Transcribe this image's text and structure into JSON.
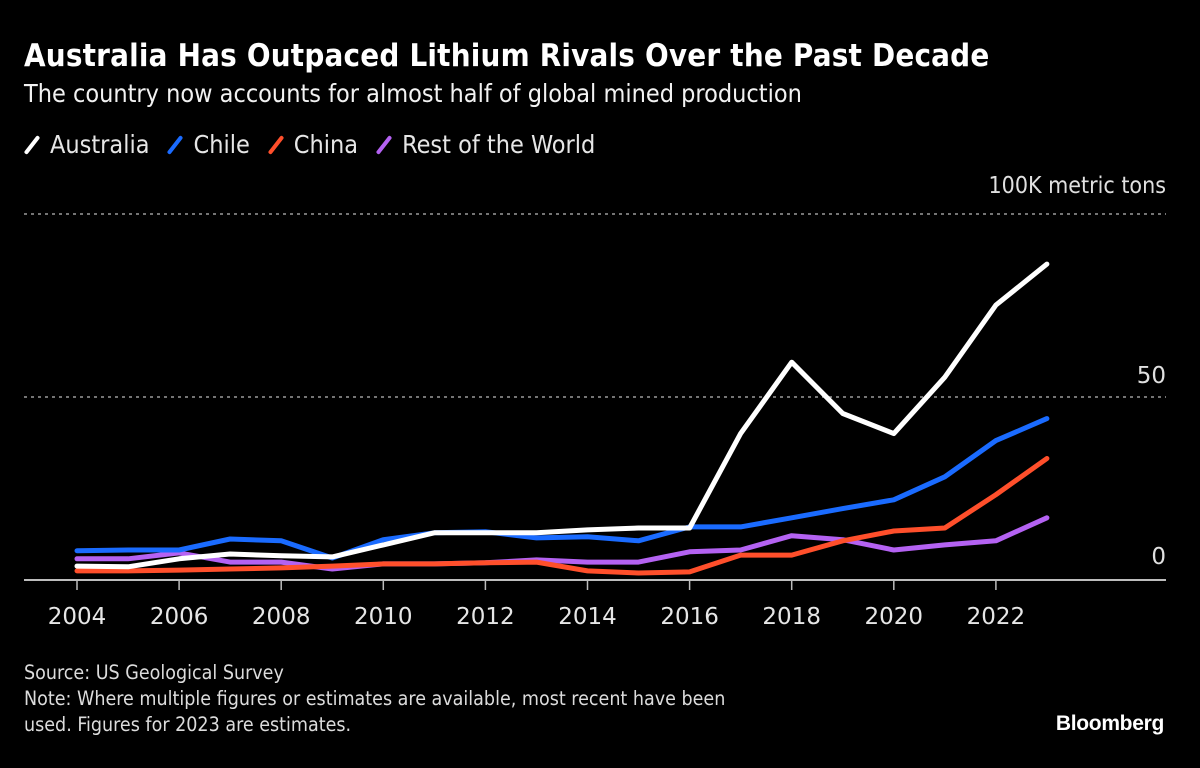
{
  "header": {
    "title": "Australia Has Outpaced Lithium Rivals Over the Past Decade",
    "subtitle": "The country now accounts for almost half of global mined production"
  },
  "legend": [
    {
      "label": "Australia",
      "color": "#ffffff"
    },
    {
      "label": "Chile",
      "color": "#1a6bff"
    },
    {
      "label": "China",
      "color": "#ff4f2b"
    },
    {
      "label": "Rest of the World",
      "color": "#b462f2"
    }
  ],
  "footer": {
    "source": "Source: US Geological Survey",
    "note_line1": "Note: Where multiple figures or estimates are available, most recent have been",
    "note_line2": "used. Figures for 2023 are estimates.",
    "brand": "Bloomberg"
  },
  "chart_data": {
    "type": "line",
    "title": "Australia Has Outpaced Lithium Rivals Over the Past Decade",
    "subtitle": "The country now accounts for almost half of global mined production",
    "xlabel": "",
    "ylabel": "100K metric tons",
    "unit_label": "100K metric tons",
    "x": [
      2004,
      2005,
      2006,
      2007,
      2008,
      2009,
      2010,
      2011,
      2012,
      2013,
      2014,
      2015,
      2016,
      2017,
      2018,
      2019,
      2020,
      2021,
      2022,
      2023
    ],
    "xticks": [
      2004,
      2006,
      2008,
      2010,
      2012,
      2014,
      2016,
      2018,
      2020,
      2022
    ],
    "xtick_labels": [
      "2004",
      "2006",
      "2008",
      "2010",
      "2012",
      "2014",
      "2016",
      "2018",
      "2020",
      "2022"
    ],
    "xlim": [
      2004,
      2026
    ],
    "ylim": [
      0,
      100
    ],
    "yticks": [
      0,
      50,
      100
    ],
    "ytick_labels": [
      "0",
      "50",
      ""
    ],
    "grid": true,
    "legend_position": "top-left",
    "series": [
      {
        "name": "Australia",
        "color": "#ffffff",
        "values": [
          3.8,
          3.6,
          5.8,
          7.1,
          6.6,
          6.3,
          9.6,
          12.9,
          12.9,
          12.9,
          13.7,
          14.2,
          14.2,
          40.0,
          59.5,
          45.5,
          40.0,
          55.4,
          75.1,
          86.3
        ]
      },
      {
        "name": "Chile",
        "color": "#1a6bff",
        "values": [
          8.0,
          8.2,
          8.2,
          11.2,
          10.7,
          6.0,
          11.0,
          12.9,
          13.2,
          11.5,
          11.8,
          10.7,
          14.5,
          14.5,
          17.0,
          19.5,
          21.9,
          28.2,
          38.1,
          44.1
        ]
      },
      {
        "name": "China",
        "color": "#ff4f2b",
        "values": [
          2.5,
          2.5,
          2.7,
          3.0,
          3.3,
          3.8,
          4.4,
          4.4,
          4.7,
          4.9,
          2.5,
          1.9,
          2.2,
          6.8,
          6.8,
          10.7,
          13.4,
          14.2,
          23.3,
          33.2
        ]
      },
      {
        "name": "Rest of the World",
        "color": "#b462f2",
        "values": [
          5.8,
          5.8,
          7.4,
          4.9,
          4.9,
          3.0,
          4.4,
          4.4,
          4.7,
          5.5,
          4.9,
          4.9,
          7.7,
          8.2,
          12.1,
          11.0,
          8.2,
          9.6,
          10.7,
          17.0
        ]
      }
    ]
  }
}
